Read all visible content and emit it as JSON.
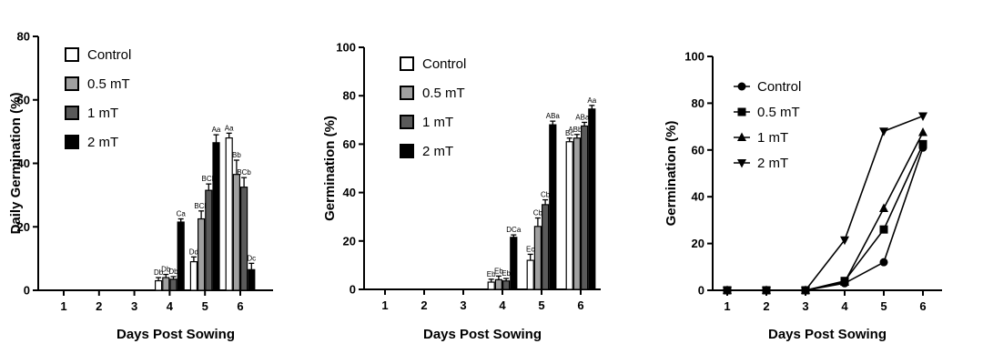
{
  "colors": {
    "Control": "#ffffff",
    "0.5 mT": "#a0a0a0",
    "1 mT": "#5a5a5a",
    "2 mT": "#000000"
  },
  "chart_data": [
    {
      "type": "bar",
      "title": "",
      "xlabel": "Days Post Sowing",
      "ylabel": "Daily Germination (%)",
      "ylim": [
        0,
        80
      ],
      "yticks": [
        0,
        20,
        40,
        60,
        80
      ],
      "categories": [
        "1",
        "2",
        "3",
        "4",
        "5",
        "6"
      ],
      "legend_position": "top-left",
      "series": [
        {
          "name": "Control",
          "values": [
            0,
            0,
            0,
            3,
            9,
            48
          ],
          "errors": [
            0,
            0,
            0,
            1,
            1.5,
            1.5
          ],
          "labels": [
            "",
            "",
            "",
            "Db",
            "Dd",
            "Aa"
          ]
        },
        {
          "name": "0.5 mT",
          "values": [
            0,
            0,
            0,
            4,
            22.5,
            36.5
          ],
          "errors": [
            0,
            0,
            0,
            1,
            2.5,
            4.5
          ],
          "labels": [
            "",
            "",
            "",
            "Db",
            "BCb",
            "Bb"
          ]
        },
        {
          "name": "1 mT",
          "values": [
            0,
            0,
            0,
            3.5,
            31.5,
            32.5
          ],
          "errors": [
            0,
            0,
            0,
            0.8,
            2,
            3
          ],
          "labels": [
            "",
            "",
            "",
            "Db",
            "BCb",
            "BCb"
          ]
        },
        {
          "name": "2 mT",
          "values": [
            0,
            0,
            0,
            21.5,
            46.5,
            6.5
          ],
          "errors": [
            0,
            0,
            0,
            1,
            2.5,
            2
          ],
          "labels": [
            "",
            "",
            "",
            "Ca",
            "Aa",
            "Dc"
          ]
        }
      ]
    },
    {
      "type": "bar",
      "title": "",
      "xlabel": "Days Post Sowing",
      "ylabel": "Germination (%)",
      "ylim": [
        0,
        100
      ],
      "yticks": [
        0,
        20,
        40,
        60,
        80,
        100
      ],
      "categories": [
        "1",
        "2",
        "3",
        "4",
        "5",
        "6"
      ],
      "legend_position": "top-left",
      "series": [
        {
          "name": "Control",
          "values": [
            0,
            0,
            0,
            3,
            12,
            61
          ],
          "errors": [
            0,
            0,
            0,
            1.2,
            2.5,
            1.5
          ],
          "labels": [
            "",
            "",
            "",
            "Eb",
            "Ec",
            "Bc"
          ]
        },
        {
          "name": "0.5 mT",
          "values": [
            0,
            0,
            0,
            4,
            26,
            62.5
          ],
          "errors": [
            0,
            0,
            0,
            1.5,
            3.5,
            1.5
          ],
          "labels": [
            "",
            "",
            "",
            "Eb",
            "Cb",
            "ABbc"
          ]
        },
        {
          "name": "1 mT",
          "values": [
            0,
            0,
            0,
            3.5,
            35,
            67.5
          ],
          "errors": [
            0,
            0,
            0,
            1,
            2,
            1.5
          ],
          "labels": [
            "",
            "",
            "",
            "Eb",
            "Cb",
            "ABab"
          ]
        },
        {
          "name": "2 mT",
          "values": [
            0,
            0,
            0,
            21.5,
            68,
            74.5
          ],
          "errors": [
            0,
            0,
            0,
            1,
            1.5,
            1.5
          ],
          "labels": [
            "",
            "",
            "",
            "DCa",
            "ABa",
            "Aa"
          ]
        }
      ]
    },
    {
      "type": "line",
      "title": "",
      "xlabel": "Days Post Sowing",
      "ylabel": "Germination (%)",
      "ylim": [
        0,
        100
      ],
      "yticks": [
        0,
        20,
        40,
        60,
        80,
        100
      ],
      "x": [
        1,
        2,
        3,
        4,
        5,
        6
      ],
      "legend_position": "top-left",
      "series": [
        {
          "name": "Control",
          "marker": "circle",
          "values": [
            0,
            0,
            0,
            3,
            12,
            61
          ]
        },
        {
          "name": "0.5 mT",
          "marker": "square",
          "values": [
            0,
            0,
            0,
            4,
            26,
            62.5
          ]
        },
        {
          "name": "1 mT",
          "marker": "triangle-up",
          "values": [
            0,
            0,
            0,
            3.5,
            35,
            67.5
          ]
        },
        {
          "name": "2 mT",
          "marker": "triangle-down",
          "values": [
            0,
            0,
            0,
            21.5,
            68,
            74.5
          ]
        }
      ]
    }
  ]
}
